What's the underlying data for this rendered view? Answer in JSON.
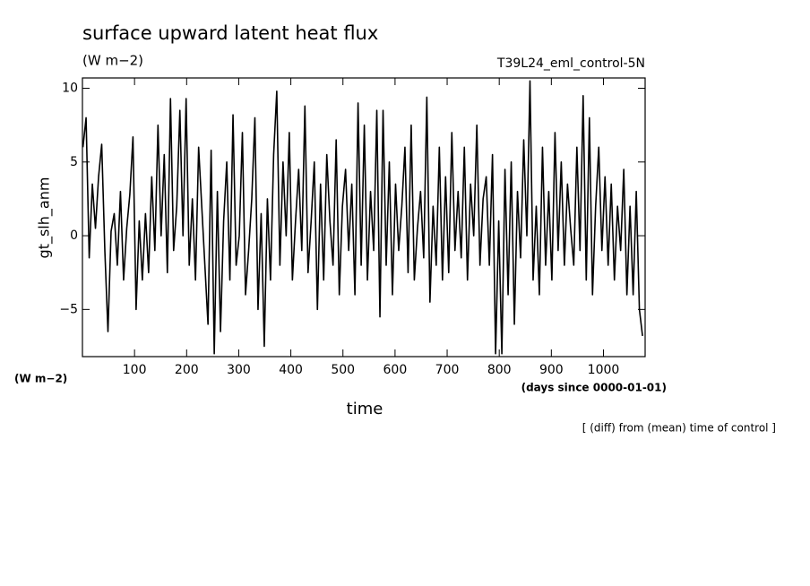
{
  "chart_data": {
    "type": "line",
    "title": "surface upward latent heat flux",
    "units": "(W m−2)",
    "experiment": "T39L24_eml_control-5N",
    "ylabel": "gt_slh_anm",
    "y_units": "(W m−2)",
    "xlabel": "time",
    "x_units": "(days since 0000-01-01)",
    "note": "[ (diff) from (mean) time of control ]",
    "xlim": [
      0,
      1080
    ],
    "ylim": [
      -8.2,
      10.7
    ],
    "xticks": [
      100,
      200,
      300,
      400,
      500,
      600,
      700,
      800,
      900,
      1000
    ],
    "yticks": [
      {
        "value": -5,
        "label": "−5"
      },
      0,
      5,
      10
    ],
    "x": [
      1,
      7,
      13,
      19,
      25,
      31,
      37,
      43,
      49,
      55,
      61,
      67,
      73,
      79,
      85,
      91,
      97,
      103,
      109,
      115,
      121,
      127,
      133,
      139,
      145,
      151,
      157,
      163,
      169,
      175,
      181,
      187,
      193,
      199,
      205,
      211,
      217,
      223,
      229,
      235,
      241,
      247,
      253,
      259,
      265,
      271,
      277,
      283,
      289,
      295,
      301,
      307,
      313,
      319,
      325,
      331,
      337,
      343,
      349,
      355,
      361,
      367,
      373,
      379,
      385,
      391,
      397,
      403,
      409,
      415,
      421,
      427,
      433,
      439,
      445,
      451,
      457,
      463,
      469,
      475,
      481,
      487,
      493,
      499,
      505,
      511,
      517,
      523,
      529,
      535,
      541,
      547,
      553,
      559,
      565,
      571,
      577,
      583,
      589,
      595,
      601,
      607,
      613,
      619,
      625,
      631,
      637,
      643,
      649,
      655,
      661,
      667,
      673,
      679,
      685,
      691,
      697,
      703,
      709,
      715,
      721,
      727,
      733,
      739,
      745,
      751,
      757,
      763,
      769,
      775,
      781,
      787,
      793,
      799,
      805,
      811,
      817,
      823,
      829,
      835,
      841,
      847,
      853,
      859,
      865,
      871,
      877,
      883,
      889,
      895,
      901,
      907,
      913,
      919,
      925,
      931,
      937,
      943,
      949,
      955,
      961,
      967,
      973,
      979,
      985,
      991,
      997,
      1003,
      1009,
      1015,
      1021,
      1027,
      1033,
      1039,
      1045,
      1051,
      1057,
      1063,
      1069,
      1075
    ],
    "series": [
      {
        "color": "#000000",
        "values": [
          6,
          8,
          -1.5,
          3.5,
          0.5,
          4,
          6.2,
          -1,
          -6.5,
          0.3,
          1.5,
          -2,
          3,
          -3,
          0.5,
          2.8,
          6.7,
          -5,
          1,
          -3,
          1.5,
          -2.5,
          4,
          -1,
          7.5,
          0,
          5.5,
          -2.5,
          9.3,
          -1,
          2,
          8.5,
          0,
          9.3,
          -2,
          2.5,
          -3,
          6,
          2,
          -2,
          -6,
          5.8,
          -8,
          3,
          -6.5,
          1,
          5,
          -3,
          8.2,
          -2,
          0,
          7,
          -4,
          -1,
          2.5,
          8,
          -5,
          1.5,
          -7.5,
          2.5,
          -3,
          5.5,
          9.8,
          -2,
          5,
          0,
          7,
          -3,
          1,
          4.5,
          -1,
          8.8,
          -2.5,
          1,
          5,
          -5,
          3.5,
          -3,
          5.5,
          1,
          -2,
          6.5,
          -4,
          2,
          4.5,
          -1,
          3.5,
          -4,
          9,
          -2,
          7.5,
          -3,
          3,
          -1,
          8.5,
          -5.5,
          8.5,
          -2,
          5,
          -4,
          3.5,
          -1,
          2,
          6,
          -2.5,
          7.5,
          -3,
          0.5,
          3,
          -1.5,
          9.4,
          -4.5,
          2,
          -2,
          6,
          -3,
          4,
          -2.5,
          7,
          -1,
          3,
          -1.5,
          6,
          -3,
          3.5,
          0,
          7.5,
          -2,
          2.5,
          4,
          -2,
          5.5,
          -8,
          1,
          -8,
          4.5,
          -4,
          5,
          -6,
          3,
          -1.5,
          6.5,
          0,
          10.5,
          -3,
          2,
          -4,
          6,
          -2,
          3,
          -3,
          7,
          -1,
          5,
          -2,
          3.5,
          0.5,
          -2,
          6,
          -1,
          9.5,
          -3,
          8,
          -4,
          2,
          6,
          -1,
          4,
          -2,
          3.5,
          -3,
          2,
          -1,
          4.5,
          -4,
          2,
          -4,
          3,
          -5,
          -6.8
        ]
      }
    ]
  }
}
